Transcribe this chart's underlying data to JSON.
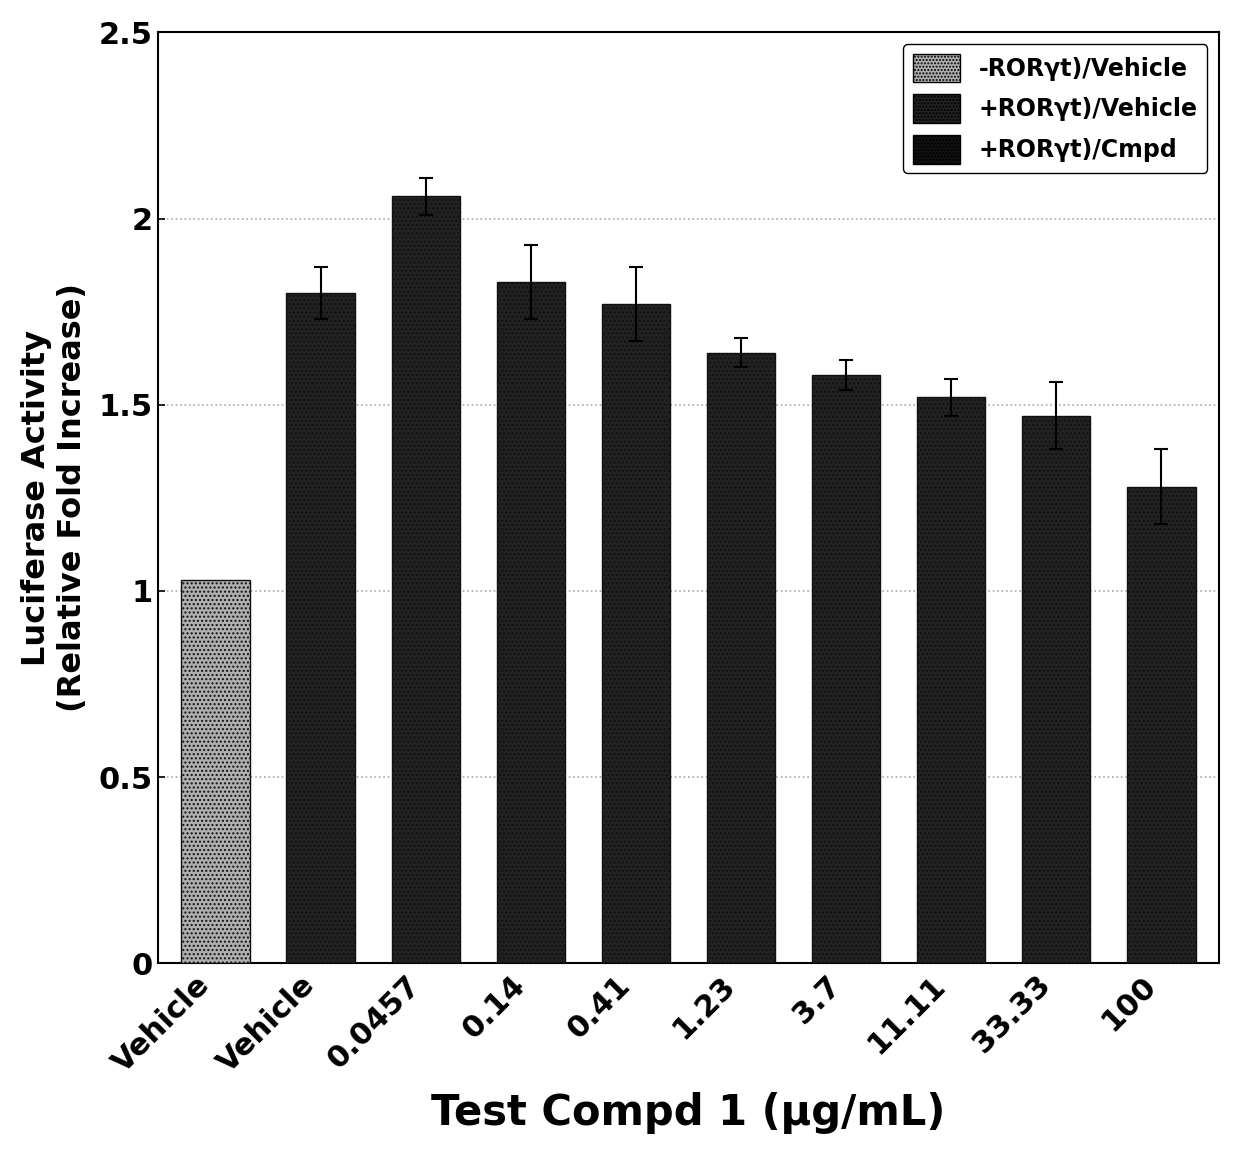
{
  "categories": [
    "Vehicle",
    "Vehicle",
    "0.0457",
    "0.14",
    "0.41",
    "1.23",
    "3.7",
    "11.11",
    "33.33",
    "100"
  ],
  "values": [
    1.03,
    1.8,
    2.06,
    1.83,
    1.77,
    1.64,
    1.58,
    1.52,
    1.47,
    1.28
  ],
  "errors": [
    0.0,
    0.07,
    0.05,
    0.1,
    0.1,
    0.04,
    0.04,
    0.05,
    0.09,
    0.1
  ],
  "bar_types": [
    "hatch_light",
    "dark_dot",
    "dark_dot",
    "dark_dot",
    "dark_dot",
    "dark_dot",
    "dark_dot",
    "dark_dot",
    "dark_dot",
    "dark_dot"
  ],
  "ylabel_line1": "Luciferase Activity",
  "ylabel_line2": "(Relative Fold Increase)",
  "xlabel": "Test Compd 1 (μg/mL)",
  "ylim": [
    0,
    2.5
  ],
  "ytick_vals": [
    0,
    0.5,
    1.0,
    1.5,
    2.0,
    2.5
  ],
  "ytick_labels": [
    "0",
    "0.5",
    "1",
    "1.5",
    "2",
    "2.5"
  ],
  "legend_labels": [
    "-RORγt)/Vehicle",
    "+RORγt)/Vehicle",
    "+RORγt)/Cmpd"
  ],
  "grid_color": "#aaaaaa",
  "bg_color": "#ffffff",
  "bar_edge_color": "#111111",
  "bar_width": 0.65,
  "hatch_color": "#888888",
  "dark_bar_color": "#222222",
  "light_bar_facecolor": "#b0b0b0",
  "ylabel_fontsize": 23,
  "xlabel_fontsize": 30,
  "tick_fontsize": 22,
  "legend_fontsize": 17
}
